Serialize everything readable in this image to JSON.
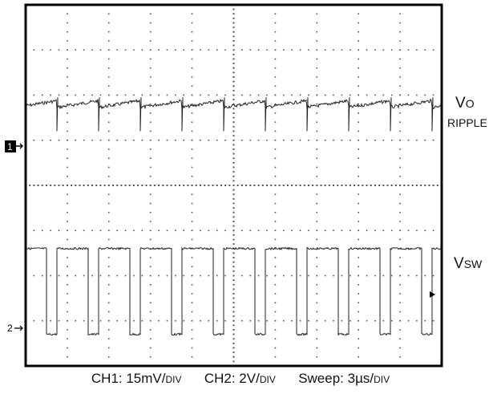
{
  "chart_data": {
    "type": "line",
    "title": "",
    "grid": true,
    "grid_divisions": {
      "x": 10,
      "y": 8
    },
    "series": [
      {
        "name": "Vo RIPPLE",
        "channel": "1",
        "unit_per_div": "15mV/DIV",
        "description_points_div": {
          "period_div": 1.0,
          "baseline_div_from_top": 2.2,
          "ramp_rise_div": 0.15,
          "spike_div": 0.6
        }
      },
      {
        "name": "Vsw",
        "channel": "2",
        "unit_per_div": "2V/DIV",
        "description_points_div": {
          "period_div": 1.0,
          "high_div_from_top": 5.4,
          "low_div_from_top": 7.3,
          "duty_high": 0.75
        }
      }
    ],
    "markers": [
      "1",
      "2"
    ],
    "labels": {
      "vo_main": "V",
      "vo_sub": "O",
      "ripple": "RIPPLE",
      "vsw_main": "V",
      "vsw_sub": "SW"
    },
    "footer": {
      "ch1_prefix": "CH1: 15mV/",
      "ch1_unit": "DIV",
      "ch2_prefix": "CH2: 2V/",
      "ch2_unit": "DIV",
      "sweep_prefix": "Sweep: 3µs/",
      "sweep_unit": "DIV"
    }
  }
}
